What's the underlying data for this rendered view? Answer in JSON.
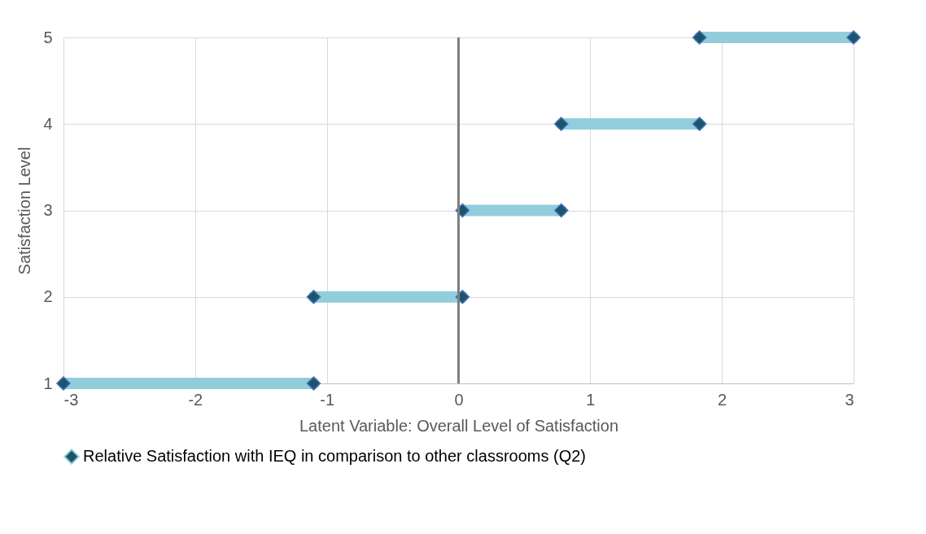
{
  "chart_data": {
    "type": "line",
    "xlabel": "Latent Variable: Overall Level of Satisfaction",
    "ylabel": "Satisfaction Level",
    "x": [
      -3,
      -1.1,
      null,
      -1.1,
      0.03,
      null,
      0.03,
      0.78,
      null,
      0.78,
      1.83,
      null,
      1.83,
      3
    ],
    "series": [
      {
        "name": "Relative Satisfaction with IEQ in comparison to other classrooms (Q2)",
        "color": "#92cddc",
        "values": [
          1,
          1,
          null,
          2,
          2,
          null,
          3,
          3,
          null,
          4,
          4,
          null,
          5,
          5
        ]
      }
    ],
    "xlim": [
      -3,
      3
    ],
    "xticks": [
      -3,
      -2,
      -1,
      0,
      1,
      2,
      3
    ],
    "ylim": [
      1,
      5
    ],
    "yticks": [
      1,
      2,
      3,
      4,
      5
    ],
    "grid": true,
    "legend": "bottom",
    "marker": "diamond",
    "line_style": "solid",
    "ref_lines": [
      {
        "axis": "x",
        "value": 0,
        "color": "#7f7f7f"
      }
    ]
  }
}
